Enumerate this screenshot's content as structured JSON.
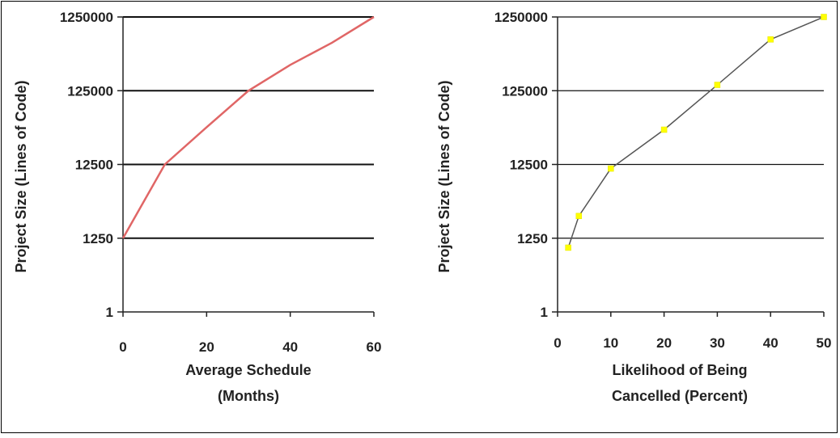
{
  "chart_data": [
    {
      "type": "line",
      "xlabel_lines": [
        "Average Schedule",
        "(Months)"
      ],
      "ylabel": "Project Size (Lines of Code)",
      "x_ticks": [
        0,
        20,
        40,
        60
      ],
      "y_ticks": [
        "1",
        "1250",
        "12500",
        "125000",
        "1250000"
      ],
      "y_scale": "log (categorical decade ticks)",
      "xlim": [
        0,
        60
      ],
      "grid": "horizontal",
      "series": [
        {
          "color": "#e06666",
          "points": [
            {
              "x": 0,
              "y": 1250
            },
            {
              "x": 10,
              "y": 12500
            },
            {
              "x": 20,
              "y": 40000
            },
            {
              "x": 30,
              "y": 125000
            },
            {
              "x": 40,
              "y": 280000
            },
            {
              "x": 50,
              "y": 560000
            },
            {
              "x": 60,
              "y": 1250000
            }
          ]
        }
      ]
    },
    {
      "type": "line",
      "xlabel_lines": [
        "Likelihood of Being",
        "Cancelled (Percent)"
      ],
      "ylabel": "Project Size (Lines of Code)",
      "x_ticks": [
        0,
        10,
        20,
        30,
        40,
        50
      ],
      "y_ticks": [
        "1",
        "1250",
        "12500",
        "125000",
        "1250000"
      ],
      "y_scale": "log (categorical decade ticks)",
      "xlim": [
        0,
        50
      ],
      "grid": "horizontal",
      "series": [
        {
          "color": "#555555",
          "marker_color": "#ffff00",
          "points": [
            {
              "x": 2,
              "y": 500
            },
            {
              "x": 4,
              "y": 2500
            },
            {
              "x": 10,
              "y": 11000
            },
            {
              "x": 20,
              "y": 37000
            },
            {
              "x": 30,
              "y": 150000
            },
            {
              "x": 40,
              "y": 620000
            },
            {
              "x": 50,
              "y": 1250000
            }
          ]
        }
      ]
    }
  ]
}
